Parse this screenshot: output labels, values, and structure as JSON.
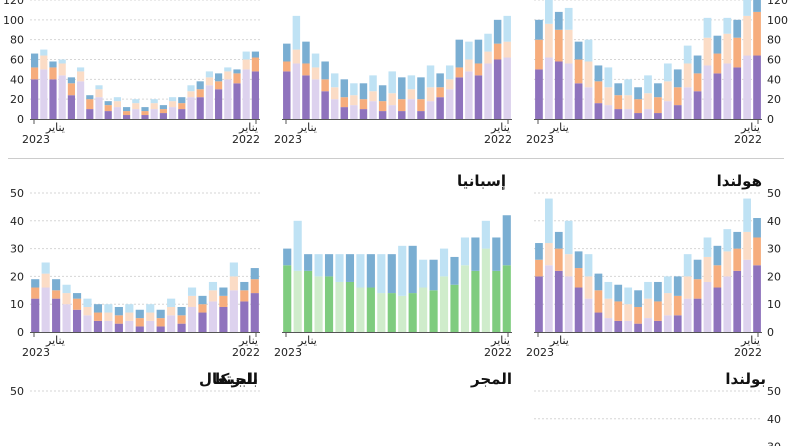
{
  "month_label": "يناير",
  "colors": {
    "cat1_dark": "#8f73bd",
    "cat1_light": "#ddd2ee",
    "cat2_dark": "#f6ad7d",
    "cat2_light": "#fbdcc6",
    "cat3_dark": "#7aaed2",
    "cat3_light": "#bfe2f4",
    "green_dark": "#7fcc7f",
    "green_light": "#cfeccb",
    "grid": "#d6d6d6",
    "divider": "#cccccc"
  },
  "chart_data": [
    {
      "type": "bar",
      "title": "",
      "yticks": [
        0,
        20,
        40,
        60,
        80,
        100,
        120
      ],
      "ylim": [
        0,
        120
      ],
      "x_labels": [
        {
          "month": "يناير",
          "year": "2023"
        },
        {
          "month": "يناير",
          "year": "2022"
        }
      ],
      "series_style": "three",
      "dark": [
        [
          40,
          12,
          14
        ],
        [
          40,
          12,
          6
        ],
        [
          24,
          12,
          6
        ],
        [
          10,
          10,
          4
        ],
        [
          8,
          6,
          4
        ],
        [
          4,
          4,
          4
        ],
        [
          4,
          4,
          4
        ],
        [
          6,
          4,
          4
        ],
        [
          10,
          6,
          6
        ],
        [
          22,
          8,
          8
        ],
        [
          30,
          8,
          8
        ],
        [
          36,
          10,
          4
        ],
        [
          48,
          14,
          6
        ]
      ],
      "light": [
        [
          50,
          14,
          6
        ],
        [
          44,
          12,
          4
        ],
        [
          38,
          10,
          4
        ],
        [
          22,
          8,
          4
        ],
        [
          12,
          6,
          4
        ],
        [
          10,
          6,
          4
        ],
        [
          10,
          6,
          4
        ],
        [
          12,
          6,
          4
        ],
        [
          22,
          6,
          6
        ],
        [
          34,
          8,
          6
        ],
        [
          40,
          8,
          4
        ],
        [
          50,
          10,
          8
        ]
      ]
    },
    {
      "type": "bar",
      "title": "إسبانيا",
      "yticks": [],
      "ylim": [
        0,
        120
      ],
      "x_labels": [
        {
          "month": "يناير",
          "year": "2023"
        },
        {
          "month": "يناير",
          "year": "2022"
        }
      ],
      "series_style": "three",
      "dark": [
        [
          48,
          10,
          18
        ],
        [
          44,
          12,
          22
        ],
        [
          28,
          12,
          18
        ],
        [
          12,
          10,
          18
        ],
        [
          10,
          10,
          16
        ],
        [
          8,
          10,
          16
        ],
        [
          8,
          12,
          22
        ],
        [
          8,
          12,
          22
        ],
        [
          22,
          10,
          14
        ],
        [
          42,
          10,
          28
        ],
        [
          44,
          12,
          24
        ],
        [
          60,
          16,
          24
        ]
      ],
      "light": [
        [
          56,
          14,
          34
        ],
        [
          40,
          12,
          14
        ],
        [
          20,
          12,
          14
        ],
        [
          14,
          10,
          12
        ],
        [
          18,
          10,
          16
        ],
        [
          14,
          12,
          22
        ],
        [
          20,
          10,
          14
        ],
        [
          18,
          14,
          22
        ],
        [
          30,
          10,
          14
        ],
        [
          48,
          12,
          18
        ],
        [
          56,
          12,
          18
        ],
        [
          62,
          16,
          26
        ]
      ]
    },
    {
      "type": "bar",
      "title": "هولندا",
      "yticks": [
        0,
        20,
        40,
        60,
        80,
        100,
        120
      ],
      "ylim": [
        0,
        120
      ],
      "x_labels": [
        {
          "month": "يناير",
          "year": "2023"
        },
        {
          "month": "يناير",
          "year": "2022"
        }
      ],
      "series_style": "three",
      "dark": [
        [
          50,
          30,
          20
        ],
        [
          58,
          32,
          18
        ],
        [
          36,
          24,
          18
        ],
        [
          16,
          22,
          16
        ],
        [
          10,
          14,
          12
        ],
        [
          6,
          14,
          12
        ],
        [
          6,
          16,
          14
        ],
        [
          14,
          18,
          18
        ],
        [
          28,
          18,
          18
        ],
        [
          46,
          20,
          18
        ],
        [
          52,
          30,
          18
        ],
        [
          64,
          44,
          20
        ]
      ],
      "light": [
        [
          62,
          34,
          24
        ],
        [
          56,
          34,
          22
        ],
        [
          32,
          26,
          22
        ],
        [
          14,
          18,
          20
        ],
        [
          10,
          14,
          16
        ],
        [
          10,
          16,
          18
        ],
        [
          18,
          20,
          18
        ],
        [
          32,
          24,
          18
        ],
        [
          54,
          28,
          20
        ],
        [
          56,
          30,
          16
        ],
        [
          64,
          40,
          18
        ]
      ]
    },
    {
      "type": "bar",
      "title": "بلجيكا",
      "yticks": [
        0,
        10,
        20,
        30,
        40,
        50
      ],
      "ylim": [
        0,
        50
      ],
      "x_labels": [
        {
          "month": "يناير",
          "year": "2023"
        },
        {
          "month": "يناير",
          "year": "2022"
        }
      ],
      "series_style": "three",
      "dark": [
        [
          12,
          4,
          3
        ],
        [
          12,
          3,
          4
        ],
        [
          8,
          4,
          2
        ],
        [
          4,
          3,
          3
        ],
        [
          3,
          3,
          3
        ],
        [
          2,
          3,
          3
        ],
        [
          2,
          3,
          3
        ],
        [
          3,
          3,
          3
        ],
        [
          7,
          3,
          3
        ],
        [
          9,
          4,
          3
        ],
        [
          11,
          4,
          3
        ],
        [
          14,
          5,
          4
        ]
      ],
      "light": [
        [
          16,
          5,
          4
        ],
        [
          10,
          4,
          3
        ],
        [
          6,
          3,
          3
        ],
        [
          4,
          3,
          3
        ],
        [
          4,
          3,
          3
        ],
        [
          4,
          3,
          3
        ],
        [
          6,
          3,
          3
        ],
        [
          9,
          4,
          3
        ],
        [
          11,
          4,
          3
        ],
        [
          15,
          5,
          5
        ]
      ]
    },
    {
      "type": "bar",
      "title": "المجر",
      "yticks": [],
      "ylim": [
        0,
        50
      ],
      "x_labels": [
        {
          "month": "يناير",
          "year": "2023"
        },
        {
          "month": "يناير",
          "year": "2022"
        }
      ],
      "series_style": "green",
      "dark": [
        [
          24,
          6
        ],
        [
          22,
          6
        ],
        [
          20,
          8
        ],
        [
          18,
          10
        ],
        [
          16,
          12
        ],
        [
          14,
          14
        ],
        [
          14,
          17
        ],
        [
          15,
          11
        ],
        [
          17,
          10
        ],
        [
          22,
          12
        ],
        [
          22,
          12
        ],
        [
          24,
          18
        ]
      ],
      "light": [
        [
          22,
          18
        ],
        [
          20,
          8
        ],
        [
          18,
          10
        ],
        [
          16,
          12
        ],
        [
          14,
          14
        ],
        [
          13,
          18
        ],
        [
          16,
          10
        ],
        [
          20,
          10
        ],
        [
          24,
          10
        ],
        [
          30,
          10
        ]
      ]
    },
    {
      "type": "bar",
      "title": "بولندا",
      "yticks": [
        0,
        10,
        20,
        30,
        40,
        50
      ],
      "ylim": [
        0,
        50
      ],
      "x_labels": [
        {
          "month": "يناير",
          "year": "2023"
        },
        {
          "month": "يناير",
          "year": "2022"
        }
      ],
      "series_style": "three",
      "dark": [
        [
          20,
          6,
          6
        ],
        [
          22,
          8,
          6
        ],
        [
          16,
          7,
          6
        ],
        [
          7,
          8,
          6
        ],
        [
          4,
          7,
          6
        ],
        [
          3,
          6,
          6
        ],
        [
          4,
          7,
          7
        ],
        [
          6,
          7,
          7
        ],
        [
          12,
          7,
          7
        ],
        [
          16,
          8,
          7
        ],
        [
          22,
          8,
          6
        ],
        [
          24,
          10,
          7
        ]
      ],
      "light": [
        [
          24,
          8,
          16
        ],
        [
          20,
          8,
          12
        ],
        [
          12,
          8,
          8
        ],
        [
          5,
          7,
          6
        ],
        [
          4,
          6,
          6
        ],
        [
          5,
          7,
          6
        ],
        [
          6,
          8,
          6
        ],
        [
          12,
          8,
          8
        ],
        [
          18,
          9,
          7
        ],
        [
          20,
          9,
          8
        ],
        [
          26,
          10,
          12
        ]
      ]
    },
    {
      "type": "bar",
      "title": "البرتغال",
      "yticks": [
        50
      ],
      "ylim": [
        0,
        50
      ],
      "x_labels": [],
      "series_style": "three",
      "dark": [],
      "light": []
    },
    {
      "type": "bar",
      "title": "",
      "yticks": [
        30,
        40,
        50
      ],
      "ylim": [
        0,
        50
      ],
      "x_labels": [],
      "series_style": "three",
      "dark": [],
      "light": []
    }
  ]
}
